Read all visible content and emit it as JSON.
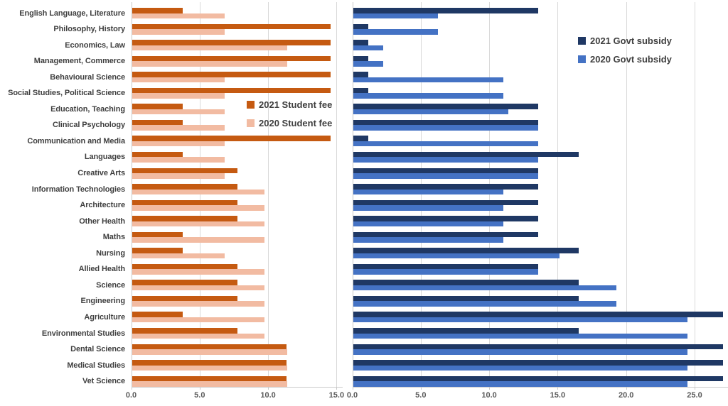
{
  "categories": [
    "English Language, Literature",
    "Philosophy, History",
    "Economics, Law",
    "Management, Commerce",
    "Behavioural Science",
    "Social Studies, Political Science",
    "Education, Teaching",
    "Clinical Psychology",
    "Communication and Media",
    "Languages",
    "Creative Arts",
    "Information Technologies",
    "Architecture",
    "Other Health",
    "Maths",
    "Nursing",
    "Allied Health",
    "Science",
    "Engineering",
    "Agriculture",
    "Environmental Studies",
    "Dental Science",
    "Medical Studies",
    "Vet Science"
  ],
  "chart_data": [
    {
      "type": "bar",
      "orientation": "horizontal",
      "title": "",
      "categories_ref": "shared - see top-level categories",
      "series": [
        {
          "name": "2021 Student fee",
          "color": "#C55A11",
          "values": [
            3.7,
            14.5,
            14.5,
            14.5,
            14.5,
            14.5,
            3.7,
            3.7,
            14.5,
            3.7,
            7.7,
            7.7,
            7.7,
            7.7,
            3.7,
            3.7,
            7.7,
            7.7,
            7.7,
            3.7,
            7.7,
            11.3,
            11.3,
            11.3
          ]
        },
        {
          "name": "2020 Student fee",
          "color": "#F2BBA2",
          "values": [
            6.8,
            6.8,
            11.35,
            11.35,
            6.8,
            6.8,
            6.8,
            6.8,
            6.8,
            6.8,
            6.8,
            9.7,
            9.7,
            9.7,
            9.7,
            6.8,
            9.7,
            9.7,
            9.7,
            9.7,
            9.7,
            11.35,
            11.35,
            11.35
          ]
        }
      ],
      "xlim": [
        0,
        15.5
      ],
      "ticks": [
        0,
        5,
        10,
        15
      ],
      "tick_labels": [
        "0.0",
        "5.0",
        "10.0",
        "15.0"
      ],
      "grid": true,
      "legend_position": "inside-right-upper"
    },
    {
      "type": "bar",
      "orientation": "horizontal",
      "title": "",
      "categories_ref": "shared - see top-level categories",
      "series": [
        {
          "name": "2021 Govt subsidy",
          "color": "#1F3864",
          "values": [
            13.5,
            1.1,
            1.1,
            1.1,
            1.1,
            1.1,
            13.5,
            13.5,
            1.1,
            16.5,
            13.5,
            13.5,
            13.5,
            13.5,
            13.5,
            16.5,
            13.5,
            16.5,
            16.5,
            27.0,
            16.5,
            27.0,
            27.0,
            27.0
          ]
        },
        {
          "name": "2020 Govt subsidy",
          "color": "#4472C4",
          "values": [
            6.2,
            6.2,
            2.2,
            2.2,
            11.0,
            11.0,
            11.35,
            13.55,
            13.55,
            13.55,
            13.55,
            11.0,
            11.0,
            11.0,
            11.0,
            15.1,
            13.55,
            19.25,
            19.25,
            24.45,
            24.45,
            24.45,
            24.45,
            24.45
          ]
        }
      ],
      "xlim": [
        0,
        27.5
      ],
      "ticks": [
        0,
        5,
        10,
        15,
        20,
        25
      ],
      "tick_labels": [
        "0.0",
        "5.0",
        "10.0",
        "15.0",
        "20.0",
        "25.0"
      ],
      "grid": true,
      "legend_position": "inside-right-upper"
    }
  ],
  "colors": {
    "fee_2021": "#C55A11",
    "fee_2020": "#F2BBA2",
    "govt_2021": "#1F3864",
    "govt_2020": "#4472C4",
    "gridline": "#D9D9D9",
    "axis_line": "#C9C9C9",
    "category_text": "#3F3F3F",
    "axis_text": "#595959"
  }
}
